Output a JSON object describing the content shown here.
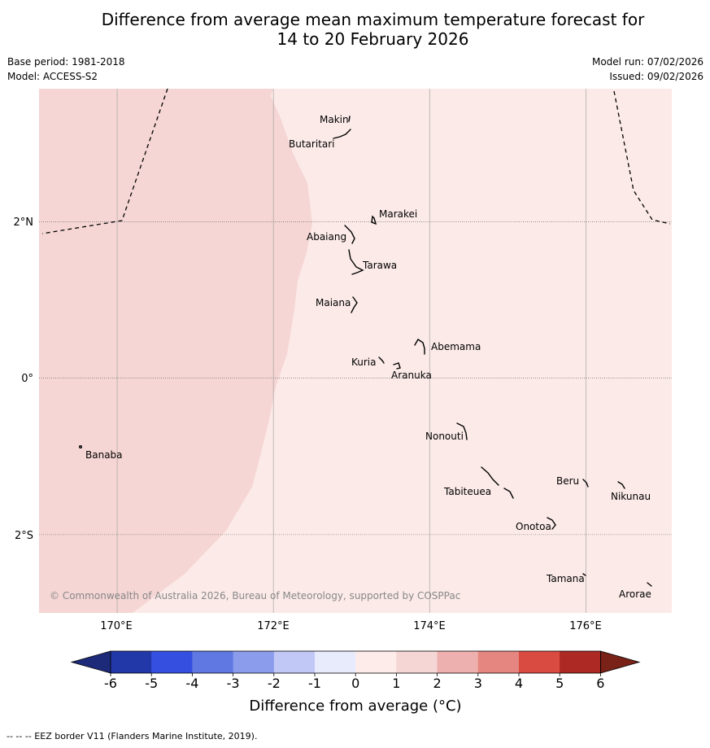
{
  "title": {
    "line1": "Difference from average mean maximum temperature forecast for",
    "line2": "14 to 20 February 2026"
  },
  "meta": {
    "base_period": "Base period: 1981-2018",
    "model": "Model: ACCESS-S2",
    "model_run": "Model run: 07/02/2026",
    "issued": "Issued: 09/02/2026"
  },
  "colors": {
    "bin_1_2": "#f5d6d4",
    "bin_0_1": "#fbeae8",
    "grid": "#9a9a9a",
    "land": "#000000"
  },
  "map": {
    "lon_range": [
      169.0,
      177.1
    ],
    "lat_range": [
      -3.0,
      3.7
    ],
    "lon_ticks": [
      {
        "value": 170,
        "label": "170°E"
      },
      {
        "value": 172,
        "label": "172°E"
      },
      {
        "value": 174,
        "label": "174°E"
      },
      {
        "value": 176,
        "label": "176°E"
      }
    ],
    "lat_ticks": [
      {
        "value": 2,
        "label": "2°N"
      },
      {
        "value": 0,
        "label": "0°"
      },
      {
        "value": -2,
        "label": "2°S"
      }
    ],
    "islands": [
      {
        "name": "Makin",
        "lon": 172.97,
        "lat": 3.32
      },
      {
        "name": "Butaritari",
        "lon": 172.8,
        "lat": 3.05
      },
      {
        "name": "Marakei",
        "lon": 173.28,
        "lat": 2.0
      },
      {
        "name": "Abaiang",
        "lon": 172.97,
        "lat": 1.8
      },
      {
        "name": "Tarawa",
        "lon": 173.0,
        "lat": 1.4
      },
      {
        "name": "Maiana",
        "lon": 173.0,
        "lat": 0.94
      },
      {
        "name": "Abemama",
        "lon": 173.88,
        "lat": 0.4
      },
      {
        "name": "Kuria",
        "lon": 173.42,
        "lat": 0.23
      },
      {
        "name": "Aranuka",
        "lon": 173.6,
        "lat": 0.17
      },
      {
        "name": "Nonouti",
        "lon": 174.4,
        "lat": -0.67
      },
      {
        "name": "Tabiteuea",
        "lon": 174.9,
        "lat": -1.35
      },
      {
        "name": "Beru",
        "lon": 176.0,
        "lat": -1.33
      },
      {
        "name": "Nikunau",
        "lon": 176.45,
        "lat": -1.36
      },
      {
        "name": "Onotoa",
        "lon": 175.55,
        "lat": -1.8
      },
      {
        "name": "Tamana",
        "lon": 175.98,
        "lat": -2.5
      },
      {
        "name": "Arorae",
        "lon": 176.82,
        "lat": -2.64
      },
      {
        "name": "Banaba",
        "lon": 169.53,
        "lat": -0.86
      }
    ],
    "copyright": "© Commonwealth of Australia 2026, Bureau of Meteorology, supported by COSPPac"
  },
  "colorbar": {
    "label": "Difference from average (°C)",
    "ticks": [
      "-6",
      "-5",
      "-4",
      "-3",
      "-2",
      "-1",
      "0",
      "1",
      "2",
      "3",
      "4",
      "5",
      "6"
    ],
    "colors": [
      "#2338a8",
      "#3550e0",
      "#5f78e2",
      "#8b9ced",
      "#c1c8f6",
      "#e8ebfc",
      "#fdecea",
      "#f5d6d4",
      "#eeb0ae",
      "#e58680",
      "#d94a40",
      "#ac2a23"
    ],
    "extend_low": "#1d2a7a",
    "extend_high": "#7a2218"
  },
  "footer": "--  --  -- EEZ border V11 (Flanders Marine Institute, 2019)."
}
